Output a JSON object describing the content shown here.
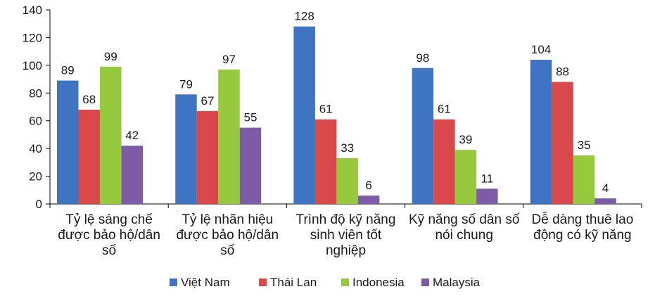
{
  "chart_data": {
    "type": "bar",
    "title": "",
    "xlabel": "",
    "ylabel": "",
    "ylim": [
      0,
      140
    ],
    "yticks": [
      "0",
      "20",
      "40",
      "60",
      "80",
      "100",
      "120",
      "140"
    ],
    "grid": false,
    "legend_position": "bottom",
    "categories": [
      [
        "Tỷ lệ sáng chế",
        "được bảo hộ/dân",
        "số"
      ],
      [
        "Tỷ lệ nhãn hiệu",
        "được bảo hộ/dân",
        "số"
      ],
      [
        "Trình độ kỹ năng",
        "sinh viên tốt",
        "nghiệp"
      ],
      [
        "Kỹ năng số dân số",
        "nói chung"
      ],
      [
        "Dễ dàng thuê lao",
        "động có kỹ năng"
      ]
    ],
    "series": [
      {
        "name": "Việt Nam",
        "color": "#3F74C2",
        "values": [
          89,
          79,
          128,
          98,
          104
        ]
      },
      {
        "name": "Thái Lan",
        "color": "#D9484B",
        "values": [
          68,
          67,
          61,
          61,
          88
        ]
      },
      {
        "name": "Indonesia",
        "color": "#96C93D",
        "values": [
          99,
          97,
          33,
          39,
          35
        ]
      },
      {
        "name": "Malaysia",
        "color": "#7D5BA6",
        "values": [
          42,
          55,
          6,
          11,
          4
        ]
      }
    ]
  }
}
